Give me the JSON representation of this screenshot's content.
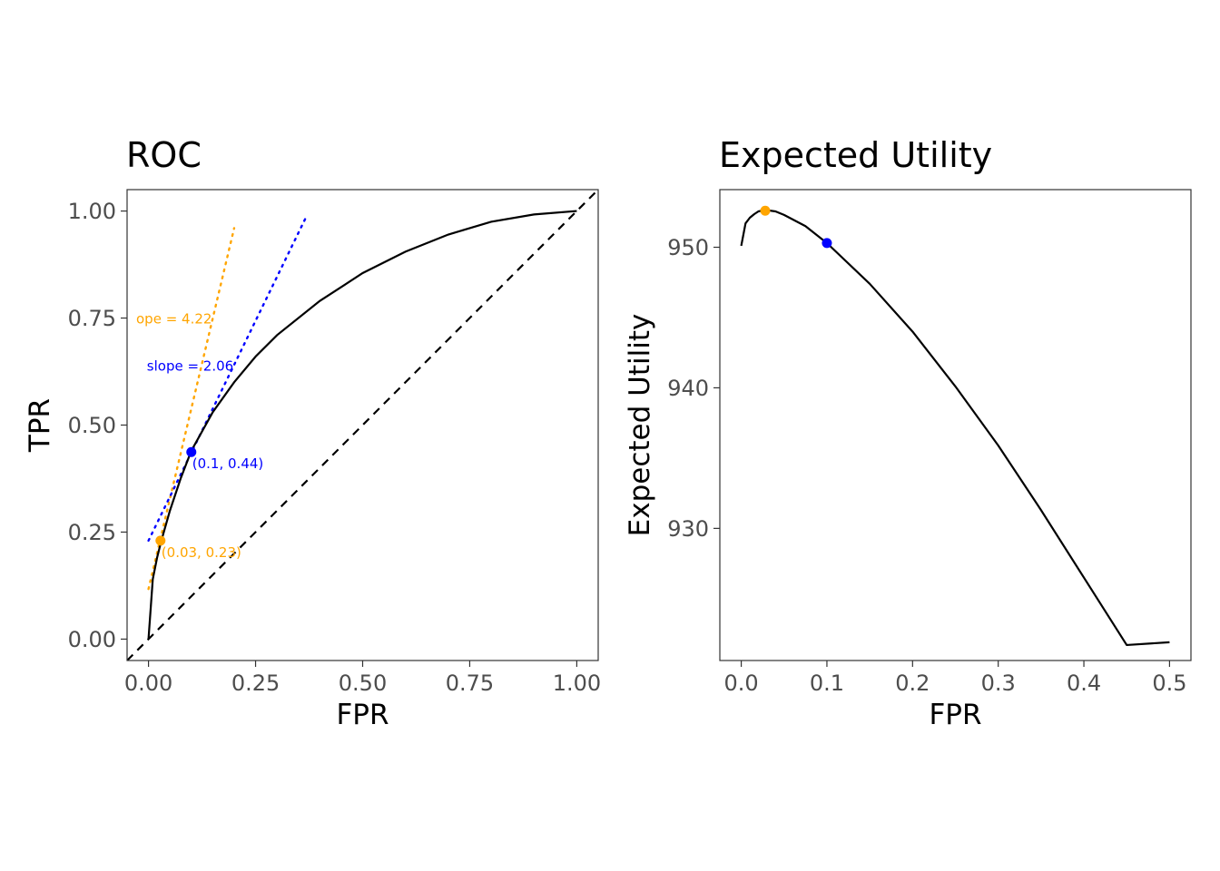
{
  "colors": {
    "orange": "#ffa500",
    "blue": "#0000ff",
    "curve": "#000000",
    "panel_border": "#333333"
  },
  "chart_data": [
    {
      "type": "line",
      "title": "ROC",
      "xlabel": "FPR",
      "ylabel": "TPR",
      "xlim": [
        -0.05,
        1.05
      ],
      "ylim": [
        -0.05,
        1.05
      ],
      "x_ticks": [
        0,
        0.25,
        0.5,
        0.75,
        1
      ],
      "x_tick_labels": [
        "0.00",
        "0.25",
        "0.50",
        "0.75",
        "1.00"
      ],
      "y_ticks": [
        0,
        0.25,
        0.5,
        0.75,
        1
      ],
      "y_tick_labels": [
        "0.00",
        "0.25",
        "0.50",
        "0.75",
        "1.00"
      ],
      "grid": false,
      "roc_curve": {
        "x": [
          0,
          0.01,
          0.02,
          0.03,
          0.05,
          0.075,
          0.1,
          0.15,
          0.2,
          0.25,
          0.3,
          0.4,
          0.5,
          0.6,
          0.7,
          0.8,
          0.9,
          1.0
        ],
        "y": [
          0,
          0.14,
          0.19,
          0.23,
          0.3,
          0.375,
          0.44,
          0.53,
          0.6,
          0.66,
          0.71,
          0.79,
          0.855,
          0.905,
          0.945,
          0.975,
          0.992,
          1.0
        ]
      },
      "diagonal": {
        "x": [
          -0.05,
          1.05
        ],
        "y": [
          -0.05,
          1.05
        ],
        "style": "dashed"
      },
      "tangents": [
        {
          "color": "orange",
          "x": [
            0,
            0.2
          ],
          "y": [
            0.117,
            0.96
          ],
          "label": "ope = 4.22",
          "label_x": -0.05,
          "label_y": 0.75
        },
        {
          "color": "blue",
          "x": [
            0,
            0.37
          ],
          "y": [
            0.23,
            0.99
          ],
          "label": "slope = 2.06",
          "label_x": -0.025,
          "label_y": 0.64
        }
      ],
      "points": [
        {
          "color": "orange",
          "x": 0.028,
          "y": 0.23,
          "label": "(0.03, 0.23)"
        },
        {
          "color": "blue",
          "x": 0.1,
          "y": 0.437,
          "label": "(0.1, 0.44)"
        }
      ]
    },
    {
      "type": "line",
      "title": "Expected Utility",
      "xlabel": "FPR",
      "ylabel": "Expected Utility",
      "xlim": [
        -0.025,
        0.525
      ],
      "ylim": [
        920.6,
        954.1
      ],
      "x_ticks": [
        0,
        0.1,
        0.2,
        0.3,
        0.4,
        0.5
      ],
      "x_tick_labels": [
        "0.0",
        "0.1",
        "0.2",
        "0.3",
        "0.4",
        "0.5"
      ],
      "y_ticks": [
        930,
        940,
        950
      ],
      "y_tick_labels": [
        "930",
        "940",
        "950"
      ],
      "grid": false,
      "curve": {
        "x": [
          0,
          0.005,
          0.01,
          0.015,
          0.02,
          0.028,
          0.04,
          0.05,
          0.075,
          0.1,
          0.15,
          0.2,
          0.25,
          0.3,
          0.35,
          0.4,
          0.45,
          0.5
        ],
        "y": [
          950.1,
          951.7,
          952.1,
          952.35,
          952.55,
          952.65,
          952.55,
          952.3,
          951.5,
          950.3,
          947.4,
          944.0,
          940.1,
          935.9,
          931.3,
          926.5,
          921.7,
          921.9
        ]
      },
      "points": [
        {
          "color": "orange",
          "x": 0.028,
          "y": 952.6
        },
        {
          "color": "blue",
          "x": 0.1,
          "y": 950.3
        }
      ]
    }
  ]
}
